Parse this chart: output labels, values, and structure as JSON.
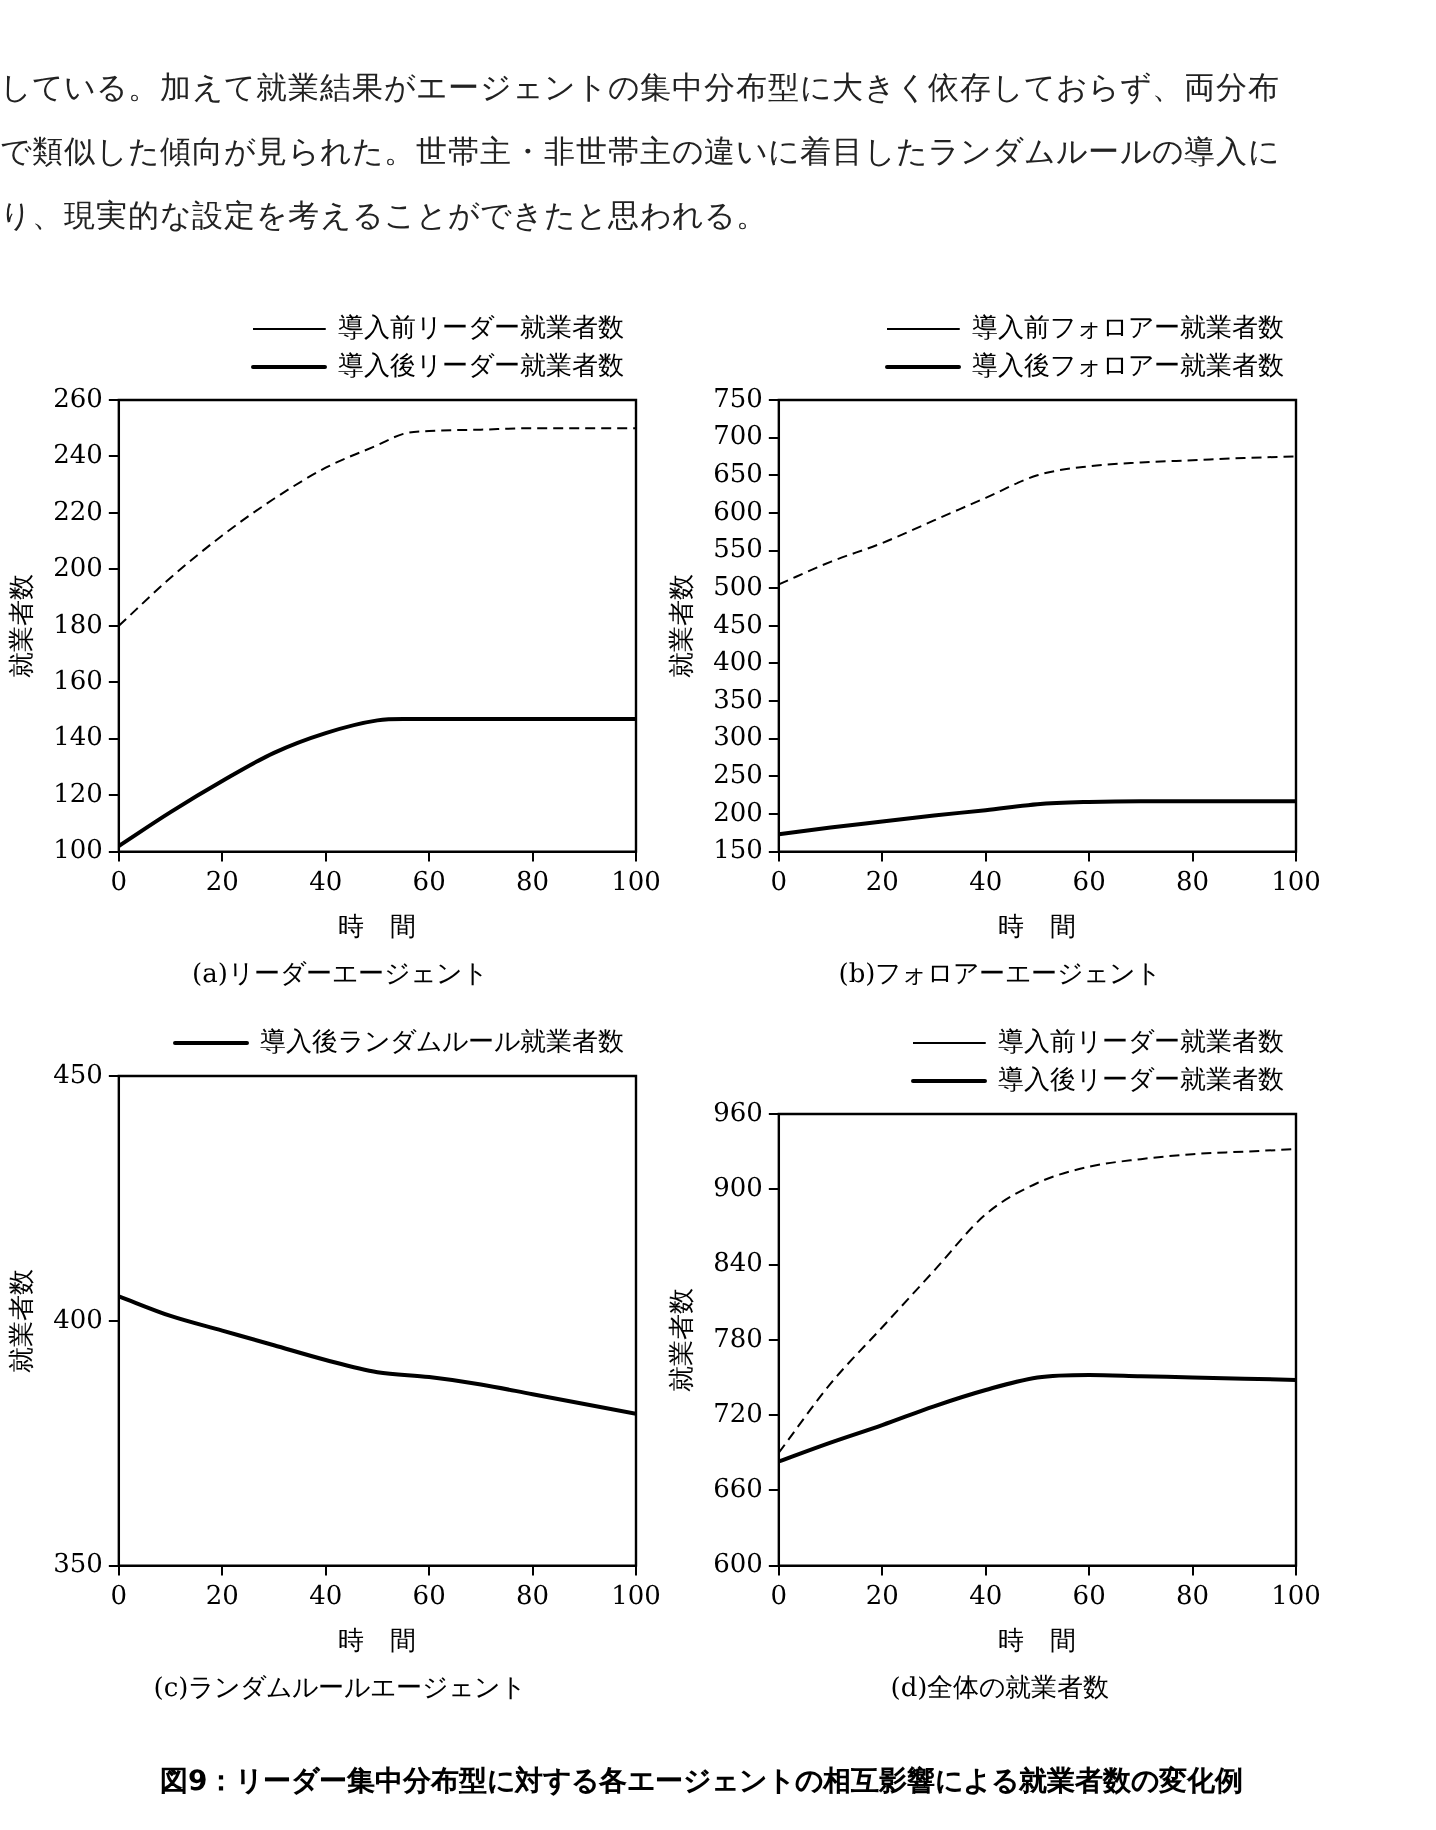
{
  "chart_data": [
    {
      "type": "other",
      "annotations": [
        "している。加えて就業結果がエージェントの集中分布型に大きく依存しておらず、両分布",
        "で類似した傾向が見られた。世帯主・非世帯主の違いに着目したランダムルールの導入に",
        "り、現実的な設定を考えることができたと思われる。"
      ]
    },
    {
      "type": "line",
      "xlabel": "時　間",
      "ylabel": "就業者数",
      "annotations": [
        "(a)リーダーエージェント"
      ],
      "legend": "top",
      "xlim": [
        0,
        100
      ],
      "xticks": [
        0,
        20,
        40,
        60,
        80,
        100
      ],
      "ylim": [
        100,
        260
      ],
      "yticks": [
        100,
        120,
        140,
        160,
        180,
        200,
        220,
        240,
        260
      ],
      "x": [
        0,
        10,
        20,
        30,
        40,
        50,
        55,
        60,
        70,
        80,
        90,
        100
      ],
      "series": [
        {
          "name": "導入前リーダー就業者数",
          "color": "#000000",
          "line_style": "dashed",
          "values": [
            180,
            197,
            212,
            225,
            236,
            244,
            248,
            249,
            249.5,
            250,
            250,
            250
          ]
        },
        {
          "name": "導入後リーダー就業者数",
          "color": "#000000",
          "line_style": "solid",
          "values": [
            102,
            114,
            125,
            135,
            142,
            146.5,
            147,
            147,
            147,
            147,
            147,
            147
          ]
        }
      ]
    },
    {
      "type": "line",
      "xlabel": "時　間",
      "ylabel": "就業者数",
      "annotations": [
        "(b)フォロアーエージェント"
      ],
      "legend": "top",
      "xlim": [
        0,
        100
      ],
      "xticks": [
        0,
        20,
        40,
        60,
        80,
        100
      ],
      "ylim": [
        150,
        750
      ],
      "yticks": [
        150,
        200,
        250,
        300,
        350,
        400,
        450,
        500,
        550,
        600,
        650,
        700,
        750
      ],
      "x": [
        0,
        10,
        20,
        30,
        40,
        50,
        60,
        70,
        80,
        90,
        100
      ],
      "series": [
        {
          "name": "導入前フォロアー就業者数",
          "color": "#000000",
          "line_style": "dashed",
          "values": [
            505,
            535,
            560,
            590,
            620,
            650,
            662,
            667,
            670,
            673,
            675
          ]
        },
        {
          "name": "導入後フォロアー就業者数",
          "color": "#000000",
          "line_style": "solid",
          "values": [
            173,
            182,
            190,
            198,
            205,
            213,
            216,
            217,
            217,
            217,
            217
          ]
        }
      ]
    },
    {
      "type": "line",
      "xlabel": "時　間",
      "ylabel": "就業者数",
      "annotations": [
        "(c)ランダムルールエージェント"
      ],
      "legend": "top",
      "xlim": [
        0,
        100
      ],
      "xticks": [
        0,
        20,
        40,
        60,
        80,
        100
      ],
      "ylim": [
        350,
        450
      ],
      "yticks": [
        350,
        400,
        450
      ],
      "x": [
        0,
        10,
        20,
        30,
        40,
        50,
        60,
        70,
        80,
        90,
        100
      ],
      "series": [
        {
          "name": "導入後ランダムルール就業者数",
          "color": "#000000",
          "line_style": "solid",
          "values": [
            405,
            401,
            398,
            395,
            392,
            389.5,
            388.5,
            387,
            385,
            383,
            381
          ]
        }
      ]
    },
    {
      "type": "line",
      "xlabel": "時　間",
      "ylabel": "就業者数",
      "annotations": [
        "(d)全体の就業者数"
      ],
      "legend": "top",
      "xlim": [
        0,
        100
      ],
      "xticks": [
        0,
        20,
        40,
        60,
        80,
        100
      ],
      "ylim": [
        600,
        960
      ],
      "yticks": [
        600,
        660,
        720,
        780,
        840,
        900,
        960
      ],
      "x": [
        0,
        10,
        20,
        30,
        40,
        50,
        60,
        70,
        80,
        90,
        100
      ],
      "series": [
        {
          "name": "導入前リーダー就業者数",
          "color": "#000000",
          "line_style": "dashed",
          "values": [
            690,
            745,
            790,
            835,
            880,
            905,
            918,
            924,
            928,
            930,
            932
          ]
        },
        {
          "name": "導入後リーダー就業者数",
          "color": "#000000",
          "line_style": "solid",
          "values": [
            683,
            698,
            712,
            727,
            740,
            750,
            752,
            751,
            750,
            749,
            748
          ]
        }
      ]
    },
    {
      "type": "other",
      "title": "図9：リーダー集中分布型に対する各エージェントの相互影響による就業者数の変化例"
    }
  ]
}
